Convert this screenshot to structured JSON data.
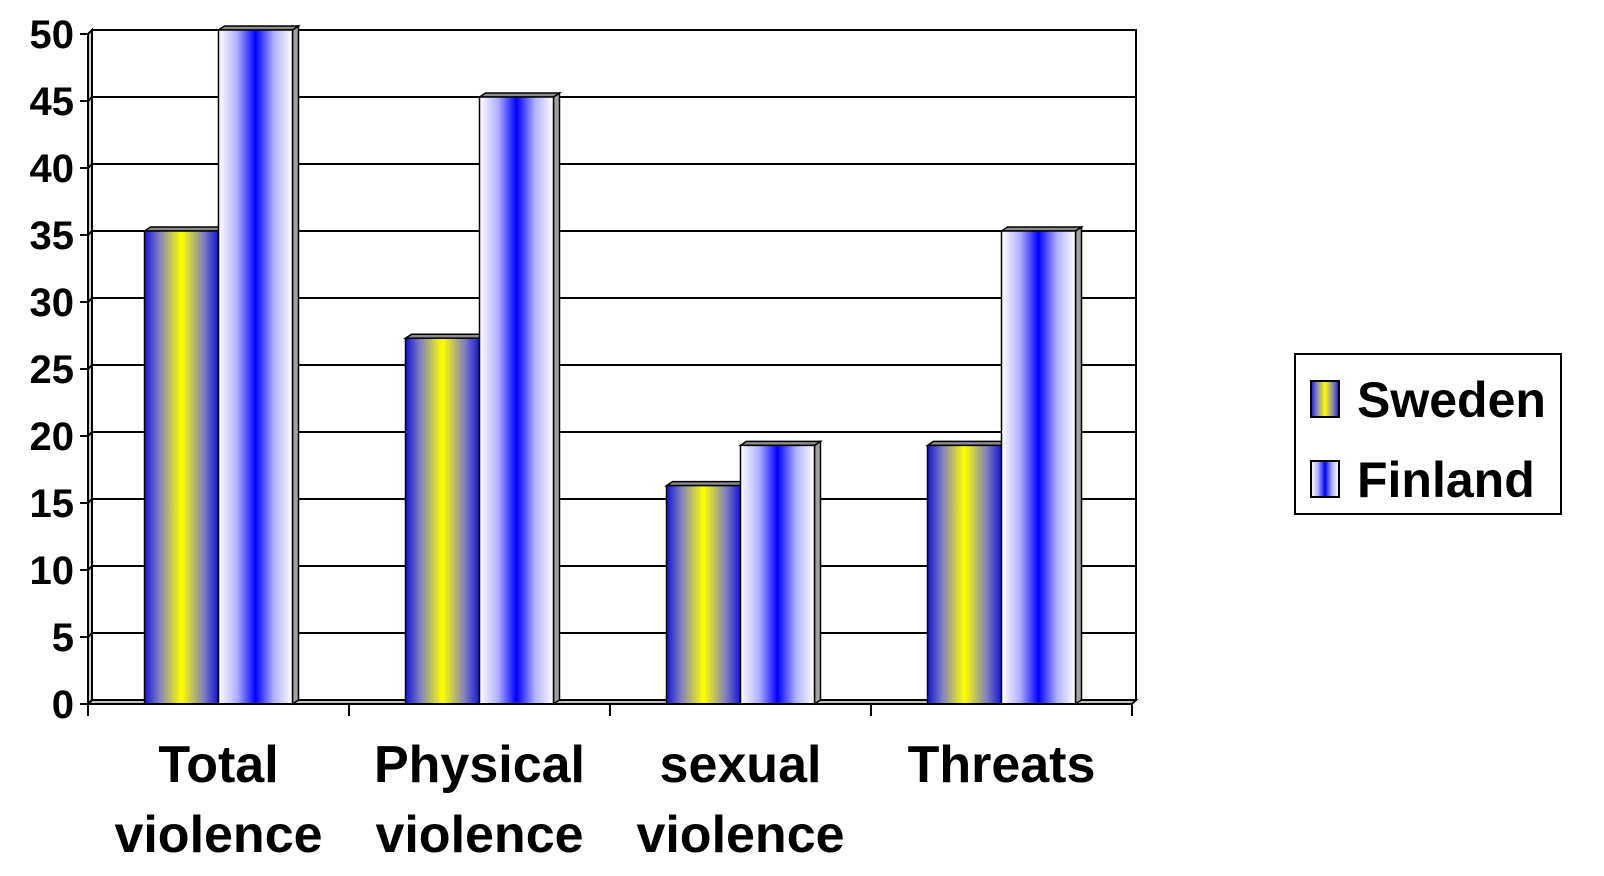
{
  "chart_data": {
    "type": "bar",
    "style": "3d-shaded",
    "categories": [
      [
        "Total",
        "violence"
      ],
      [
        "Physical",
        "violence"
      ],
      [
        "sexual",
        "violence"
      ],
      [
        "Threats"
      ]
    ],
    "series": [
      {
        "name": "Sweden",
        "values": [
          35,
          27,
          16,
          19
        ],
        "gradient": [
          "#1010e0",
          "#ffff00"
        ]
      },
      {
        "name": "Finland",
        "values": [
          50,
          45,
          19,
          35
        ],
        "gradient": [
          "#ffffff",
          "#0000ff"
        ]
      }
    ],
    "ylim": [
      0,
      50
    ],
    "yticks": [
      0,
      5,
      10,
      15,
      20,
      25,
      30,
      35,
      40,
      45,
      50
    ],
    "grid": true,
    "legend_position": "right"
  }
}
